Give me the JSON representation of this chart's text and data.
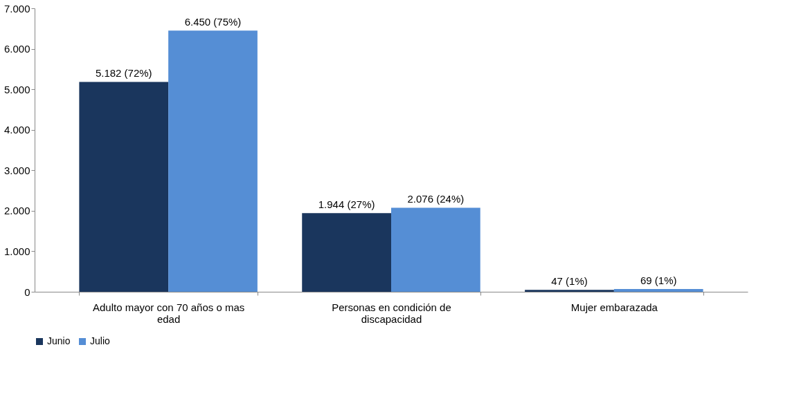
{
  "chart_data": {
    "type": "bar",
    "categories": [
      "Adulto mayor con 70 años o mas edad",
      "Personas en condición de discapacidad",
      "Mujer embarazada"
    ],
    "series": [
      {
        "name": "Junio",
        "color": "#1a365d",
        "values": [
          5182,
          1944,
          47
        ],
        "value_labels": [
          "5.182  (72%)",
          "1.944 (27%)",
          "47 (1%)"
        ]
      },
      {
        "name": "Julio",
        "color": "#558ed5",
        "values": [
          6450,
          2076,
          69
        ],
        "value_labels": [
          "6.450 (75%)",
          "2.076 (24%)",
          "69 (1%)"
        ]
      }
    ],
    "ylim": [
      0,
      7000
    ],
    "yticks": [
      {
        "value": 0,
        "label": "0"
      },
      {
        "value": 1000,
        "label": "1.000"
      },
      {
        "value": 2000,
        "label": "2.000"
      },
      {
        "value": 3000,
        "label": "3.000"
      },
      {
        "value": 4000,
        "label": "4.000"
      },
      {
        "value": 5000,
        "label": "5.000"
      },
      {
        "value": 6000,
        "label": "6.000"
      },
      {
        "value": 7000,
        "label": "7.000"
      }
    ],
    "grid": false,
    "legend": "bottom"
  }
}
